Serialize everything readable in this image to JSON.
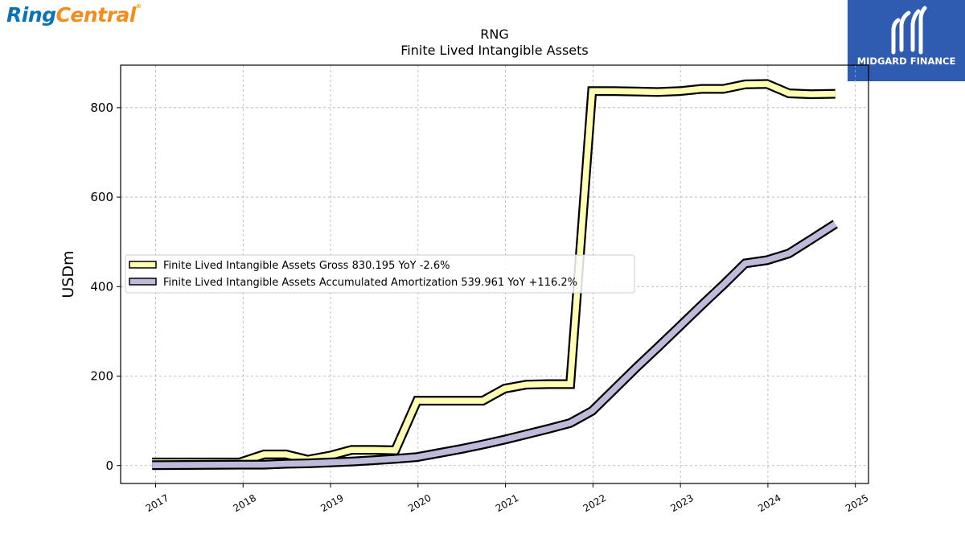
{
  "logos": {
    "left": {
      "part1": "Ring",
      "part2": "Central",
      "mark": "®"
    },
    "right": {
      "text": "MIDGARD FINANCE"
    }
  },
  "chart_data": {
    "type": "line",
    "title": "RNG",
    "subtitle": "Finite Lived Intangible Assets",
    "ylabel": "USDm",
    "xlabel": "",
    "xlim": [
      2016.6,
      2025.15
    ],
    "ylim": [
      -40,
      895
    ],
    "grid": true,
    "legend_position": "center-left",
    "x_ticks": [
      "2017",
      "2018",
      "2019",
      "2020",
      "2021",
      "2022",
      "2023",
      "2024",
      "2025"
    ],
    "y_ticks": [
      "0",
      "200",
      "400",
      "600",
      "800"
    ],
    "series": [
      {
        "name": "Finite Lived Intangible Assets Gross  830.195 YoY -2.6%",
        "color": "#ffffb3",
        "x": [
          2016.96,
          2017.96,
          2018.24,
          2018.49,
          2018.74,
          2018.99,
          2019.24,
          2019.49,
          2019.74,
          2019.99,
          2020.24,
          2020.49,
          2020.74,
          2020.99,
          2021.24,
          2021.49,
          2021.74,
          2021.99,
          2022.24,
          2022.49,
          2022.74,
          2022.99,
          2023.24,
          2023.49,
          2023.74,
          2023.99,
          2024.24,
          2024.49,
          2024.77
        ],
        "y": [
          7,
          7,
          25,
          25,
          13,
          22,
          35,
          35,
          34,
          145,
          145,
          145,
          145,
          172,
          181,
          182,
          182,
          837,
          837,
          836,
          835,
          837,
          842,
          842,
          852,
          853,
          832,
          830,
          831
        ]
      },
      {
        "name": "Finite Lived Intangible Assets Accumulated Amortization  539.961 YoY +116.2%",
        "color": "#bebada",
        "x": [
          2016.96,
          2017.96,
          2018.24,
          2018.49,
          2018.74,
          2018.99,
          2019.24,
          2019.49,
          2019.74,
          2019.99,
          2020.24,
          2020.49,
          2020.74,
          2020.99,
          2021.24,
          2021.49,
          2021.74,
          2021.99,
          2022.24,
          2022.49,
          2022.74,
          2022.99,
          2023.24,
          2023.49,
          2023.74,
          2023.99,
          2024.24,
          2024.49,
          2024.77
        ],
        "y": [
          1,
          2,
          2,
          4,
          5,
          7,
          9,
          12,
          15,
          19,
          28,
          37,
          47,
          58,
          70,
          82,
          95,
          122,
          170,
          218,
          264,
          311,
          358,
          404,
          452,
          459,
          474,
          505,
          540
        ]
      }
    ]
  }
}
